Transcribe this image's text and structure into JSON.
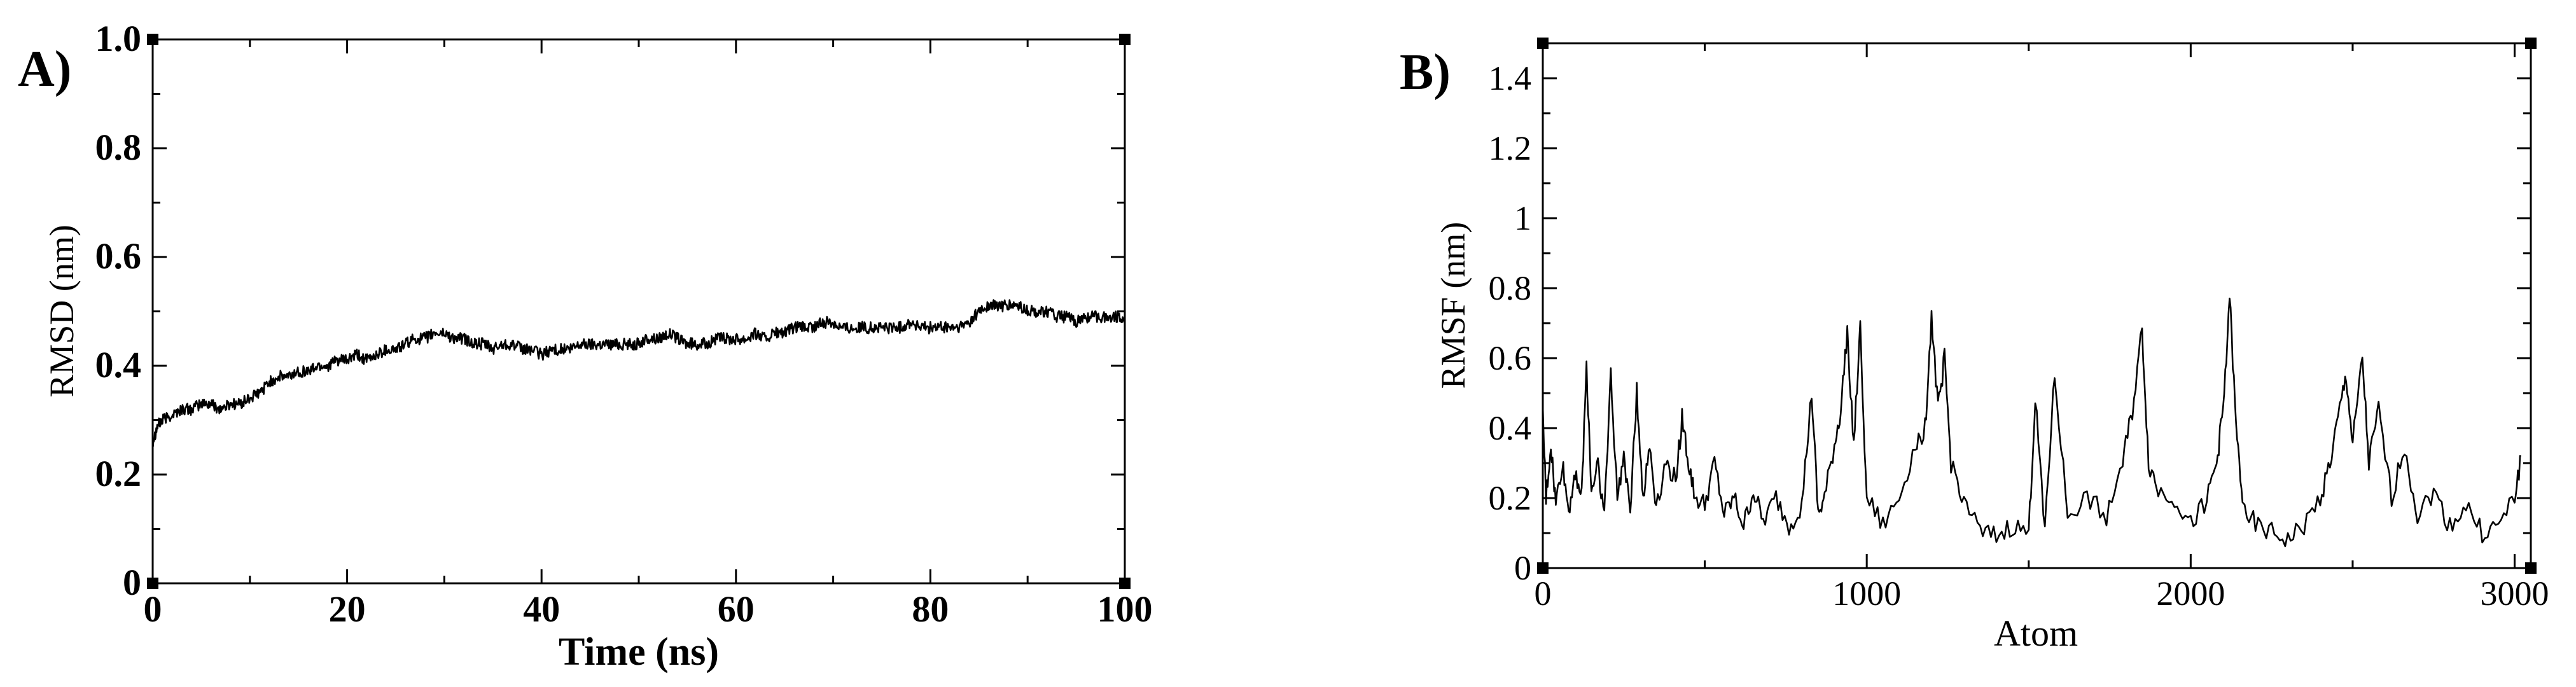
{
  "figure": {
    "panels": [
      {
        "label": "A)"
      },
      {
        "label": "B)"
      }
    ]
  },
  "chart_data": [
    {
      "type": "line",
      "panel": "A)",
      "title": "",
      "xlabel": "Time (ns)",
      "ylabel": "RMSD (nm)",
      "xlim": [
        0,
        100
      ],
      "ylim": [
        0,
        1.0
      ],
      "x_ticks": [
        0,
        20,
        40,
        60,
        80,
        100
      ],
      "x_tick_labels": [
        "0",
        "20",
        "40",
        "60",
        "80",
        "100"
      ],
      "y_ticks": [
        0,
        0.2,
        0.4,
        0.6,
        0.8,
        1.0
      ],
      "y_tick_labels": [
        "0",
        "0.2",
        "0.4",
        "0.6",
        "0.8",
        "1.0"
      ],
      "grid": false,
      "line_color": "#000000",
      "series": [
        {
          "x": [
            0,
            0.5,
            1,
            2,
            3,
            4,
            5,
            6,
            7,
            8,
            9,
            10,
            11,
            12,
            13,
            14,
            15,
            16,
            17,
            18,
            19,
            20,
            21,
            22,
            23,
            24,
            25,
            26,
            27,
            28,
            29,
            30,
            31,
            32,
            33,
            34,
            35,
            36,
            37,
            38,
            39,
            40,
            41,
            42,
            43,
            44,
            45,
            46,
            47,
            48,
            49,
            50,
            51,
            52,
            53,
            54,
            55,
            56,
            57,
            58,
            59,
            60,
            61,
            62,
            63,
            64,
            65,
            66,
            67,
            68,
            69,
            70,
            71,
            72,
            73,
            74,
            75,
            76,
            77,
            78,
            79,
            80,
            81,
            82,
            83,
            84,
            85,
            86,
            87,
            88,
            89,
            90,
            91,
            92,
            93,
            94,
            95,
            96,
            97,
            98,
            99,
            100
          ],
          "y": [
            0.26,
            0.29,
            0.3,
            0.31,
            0.32,
            0.32,
            0.33,
            0.33,
            0.32,
            0.33,
            0.33,
            0.34,
            0.35,
            0.37,
            0.38,
            0.38,
            0.39,
            0.39,
            0.4,
            0.4,
            0.41,
            0.41,
            0.42,
            0.41,
            0.42,
            0.43,
            0.43,
            0.44,
            0.45,
            0.45,
            0.46,
            0.46,
            0.45,
            0.45,
            0.44,
            0.44,
            0.43,
            0.44,
            0.44,
            0.43,
            0.43,
            0.42,
            0.43,
            0.43,
            0.43,
            0.44,
            0.44,
            0.44,
            0.44,
            0.44,
            0.44,
            0.44,
            0.45,
            0.45,
            0.46,
            0.45,
            0.44,
            0.44,
            0.44,
            0.45,
            0.45,
            0.45,
            0.45,
            0.46,
            0.45,
            0.46,
            0.46,
            0.47,
            0.47,
            0.47,
            0.48,
            0.48,
            0.47,
            0.47,
            0.47,
            0.47,
            0.47,
            0.47,
            0.47,
            0.48,
            0.47,
            0.47,
            0.47,
            0.47,
            0.47,
            0.48,
            0.5,
            0.51,
            0.51,
            0.51,
            0.51,
            0.5,
            0.5,
            0.5,
            0.49,
            0.49,
            0.48,
            0.49,
            0.49,
            0.49,
            0.49,
            0.49
          ]
        }
      ]
    },
    {
      "type": "line",
      "panel": "B)",
      "title": "",
      "xlabel": "Atom",
      "ylabel": "RMSF (nm)",
      "xlim": [
        0,
        3050
      ],
      "ylim": [
        0,
        1.5
      ],
      "x_ticks": [
        0,
        1000,
        2000,
        3000
      ],
      "x_tick_labels": [
        "0",
        "1000",
        "2000",
        "3000"
      ],
      "y_ticks": [
        0,
        0.2,
        0.4,
        0.6,
        0.8,
        1.0,
        1.2,
        1.4
      ],
      "y_tick_labels": [
        "0",
        "0.2",
        "0.4",
        "0.6",
        "0.8",
        "1",
        "1.2",
        "1.4"
      ],
      "grid": false,
      "line_color": "#000000",
      "series": [
        {
          "x": [
            0,
            10,
            25,
            40,
            60,
            80,
            100,
            120,
            135,
            150,
            170,
            190,
            210,
            230,
            250,
            270,
            290,
            310,
            330,
            350,
            380,
            410,
            430,
            450,
            470,
            500,
            530,
            560,
            590,
            620,
            650,
            680,
            720,
            760,
            800,
            830,
            850,
            870,
            900,
            920,
            940,
            960,
            980,
            1000,
            1050,
            1100,
            1150,
            1180,
            1200,
            1220,
            1240,
            1260,
            1300,
            1350,
            1400,
            1450,
            1500,
            1520,
            1550,
            1580,
            1620,
            1680,
            1740,
            1790,
            1820,
            1850,
            1870,
            1900,
            1950,
            2000,
            2050,
            2080,
            2100,
            2120,
            2140,
            2160,
            2200,
            2250,
            2300,
            2350,
            2400,
            2430,
            2460,
            2480,
            2500,
            2530,
            2550,
            2580,
            2620,
            2660,
            2700,
            2750,
            2800,
            2850,
            2900,
            2950,
            3000,
            3020
          ],
          "y": [
            0.44,
            0.2,
            0.35,
            0.18,
            0.3,
            0.16,
            0.28,
            0.2,
            0.58,
            0.22,
            0.3,
            0.15,
            0.55,
            0.2,
            0.32,
            0.18,
            0.5,
            0.2,
            0.35,
            0.18,
            0.3,
            0.25,
            0.43,
            0.3,
            0.2,
            0.18,
            0.3,
            0.15,
            0.2,
            0.12,
            0.22,
            0.13,
            0.2,
            0.12,
            0.18,
            0.5,
            0.15,
            0.2,
            0.35,
            0.45,
            0.68,
            0.35,
            0.68,
            0.2,
            0.12,
            0.2,
            0.35,
            0.4,
            0.72,
            0.45,
            0.6,
            0.3,
            0.2,
            0.1,
            0.09,
            0.12,
            0.1,
            0.48,
            0.12,
            0.55,
            0.15,
            0.2,
            0.15,
            0.3,
            0.45,
            0.68,
            0.3,
            0.22,
            0.2,
            0.12,
            0.2,
            0.3,
            0.45,
            0.78,
            0.4,
            0.2,
            0.12,
            0.1,
            0.08,
            0.12,
            0.2,
            0.3,
            0.45,
            0.55,
            0.35,
            0.6,
            0.3,
            0.45,
            0.2,
            0.35,
            0.15,
            0.22,
            0.12,
            0.18,
            0.1,
            0.12,
            0.2,
            0.32
          ]
        }
      ]
    }
  ]
}
